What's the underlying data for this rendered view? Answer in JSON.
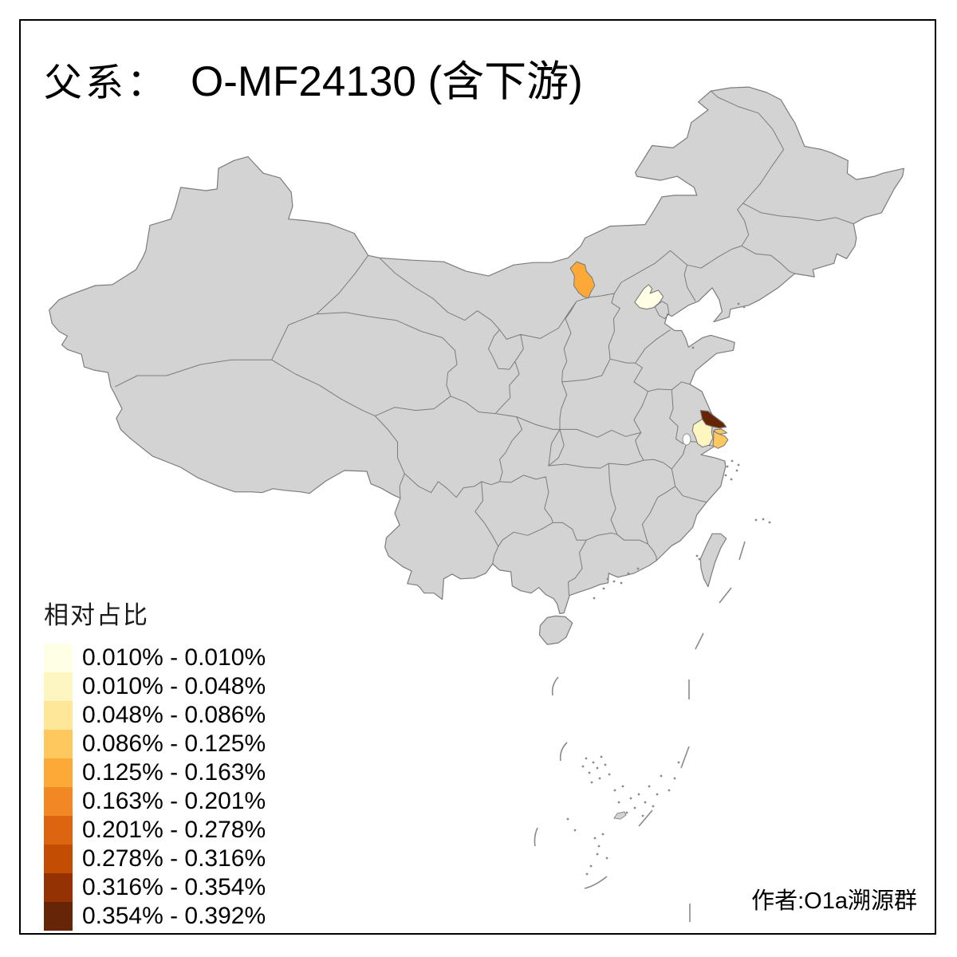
{
  "page": {
    "background": "#FFFFFF",
    "frame_color": "#000000"
  },
  "title": {
    "prefix": "父系：",
    "main": "O-MF24130 (含下游)"
  },
  "legend": {
    "title": "相对占比",
    "items": [
      {
        "label": "0.010% - 0.010%",
        "color": "#FFFFE5"
      },
      {
        "label": "0.010% - 0.048%",
        "color": "#FEF6C0"
      },
      {
        "label": "0.048% - 0.086%",
        "color": "#FEE799"
      },
      {
        "label": "0.086% - 0.125%",
        "color": "#FEC85F"
      },
      {
        "label": "0.125% - 0.163%",
        "color": "#FDA938"
      },
      {
        "label": "0.163% - 0.201%",
        "color": "#F18823"
      },
      {
        "label": "0.201% - 0.278%",
        "color": "#DD650F"
      },
      {
        "label": "0.278% - 0.316%",
        "color": "#C24D03"
      },
      {
        "label": "0.316% - 0.354%",
        "color": "#943204"
      },
      {
        "label": "0.354% - 0.392%",
        "color": "#662506"
      }
    ]
  },
  "map": {
    "land_color": "#D3D3D3",
    "border_color": "#7C7C7C",
    "water_color": "#FFFFFF",
    "island_color": "#8A8A8A",
    "highlighted_regions": [
      {
        "id": "ulanqab-inner-mongolia",
        "bin": 5,
        "range": "0.125% - 0.163%"
      },
      {
        "id": "beijing",
        "bin": 1,
        "range": "0.010% - 0.010%"
      },
      {
        "id": "nantong",
        "bin": 10,
        "range": "0.354% - 0.392%"
      },
      {
        "id": "suzhou",
        "bin": 2,
        "range": "0.010% - 0.048%"
      },
      {
        "id": "shanghai",
        "bin": 4,
        "range": "0.086% - 0.125%"
      },
      {
        "id": "chongming",
        "bin": 4,
        "range": "0.086% - 0.125%"
      }
    ]
  },
  "author": "作者:O1a溯源群"
}
